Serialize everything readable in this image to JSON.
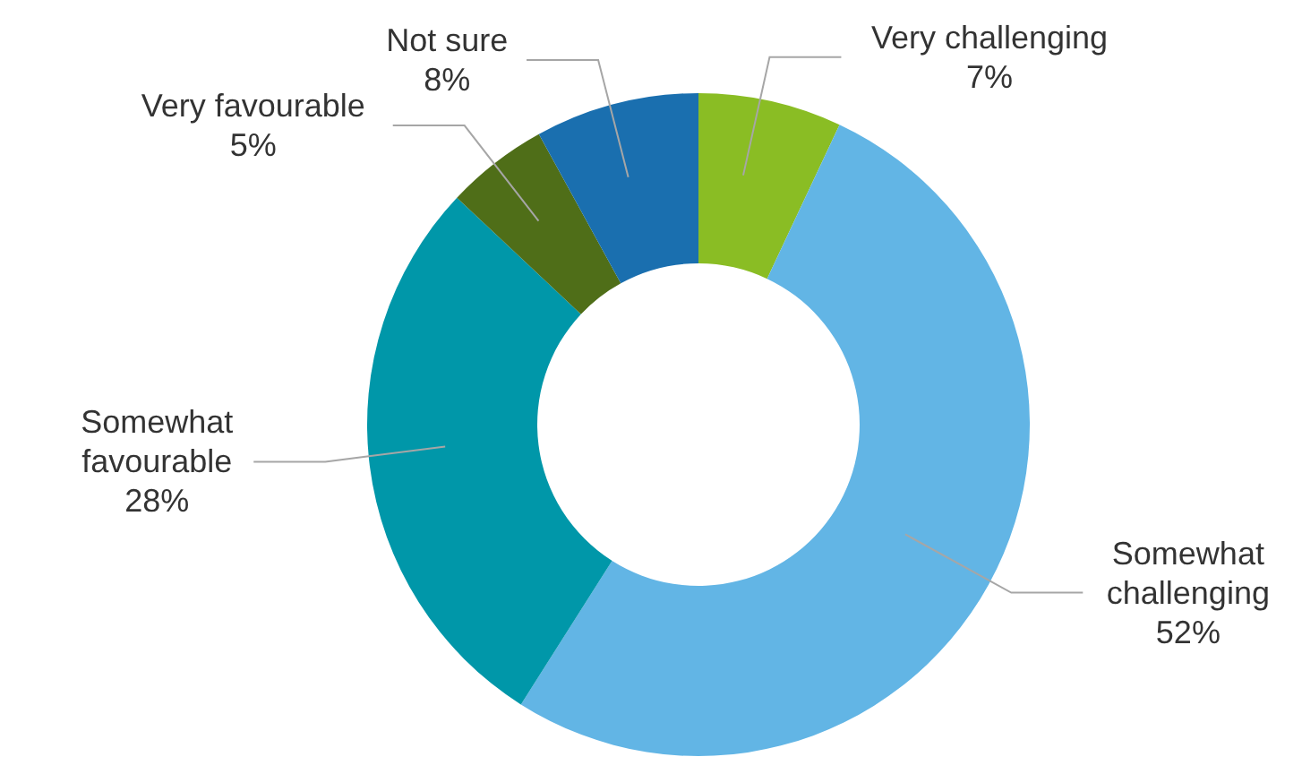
{
  "chart_data": {
    "type": "donut",
    "categories": [
      "Very challenging",
      "Somewhat challenging",
      "Somewhat favourable",
      "Very favourable",
      "Not sure"
    ],
    "values": [
      7,
      52,
      28,
      5,
      8
    ],
    "value_labels": [
      "7%",
      "52%",
      "28%",
      "5%",
      "8%"
    ],
    "colors": [
      "#8abd24",
      "#62b5e5",
      "#0097a9",
      "#4f6e18",
      "#1a6faf"
    ],
    "legend": false
  }
}
